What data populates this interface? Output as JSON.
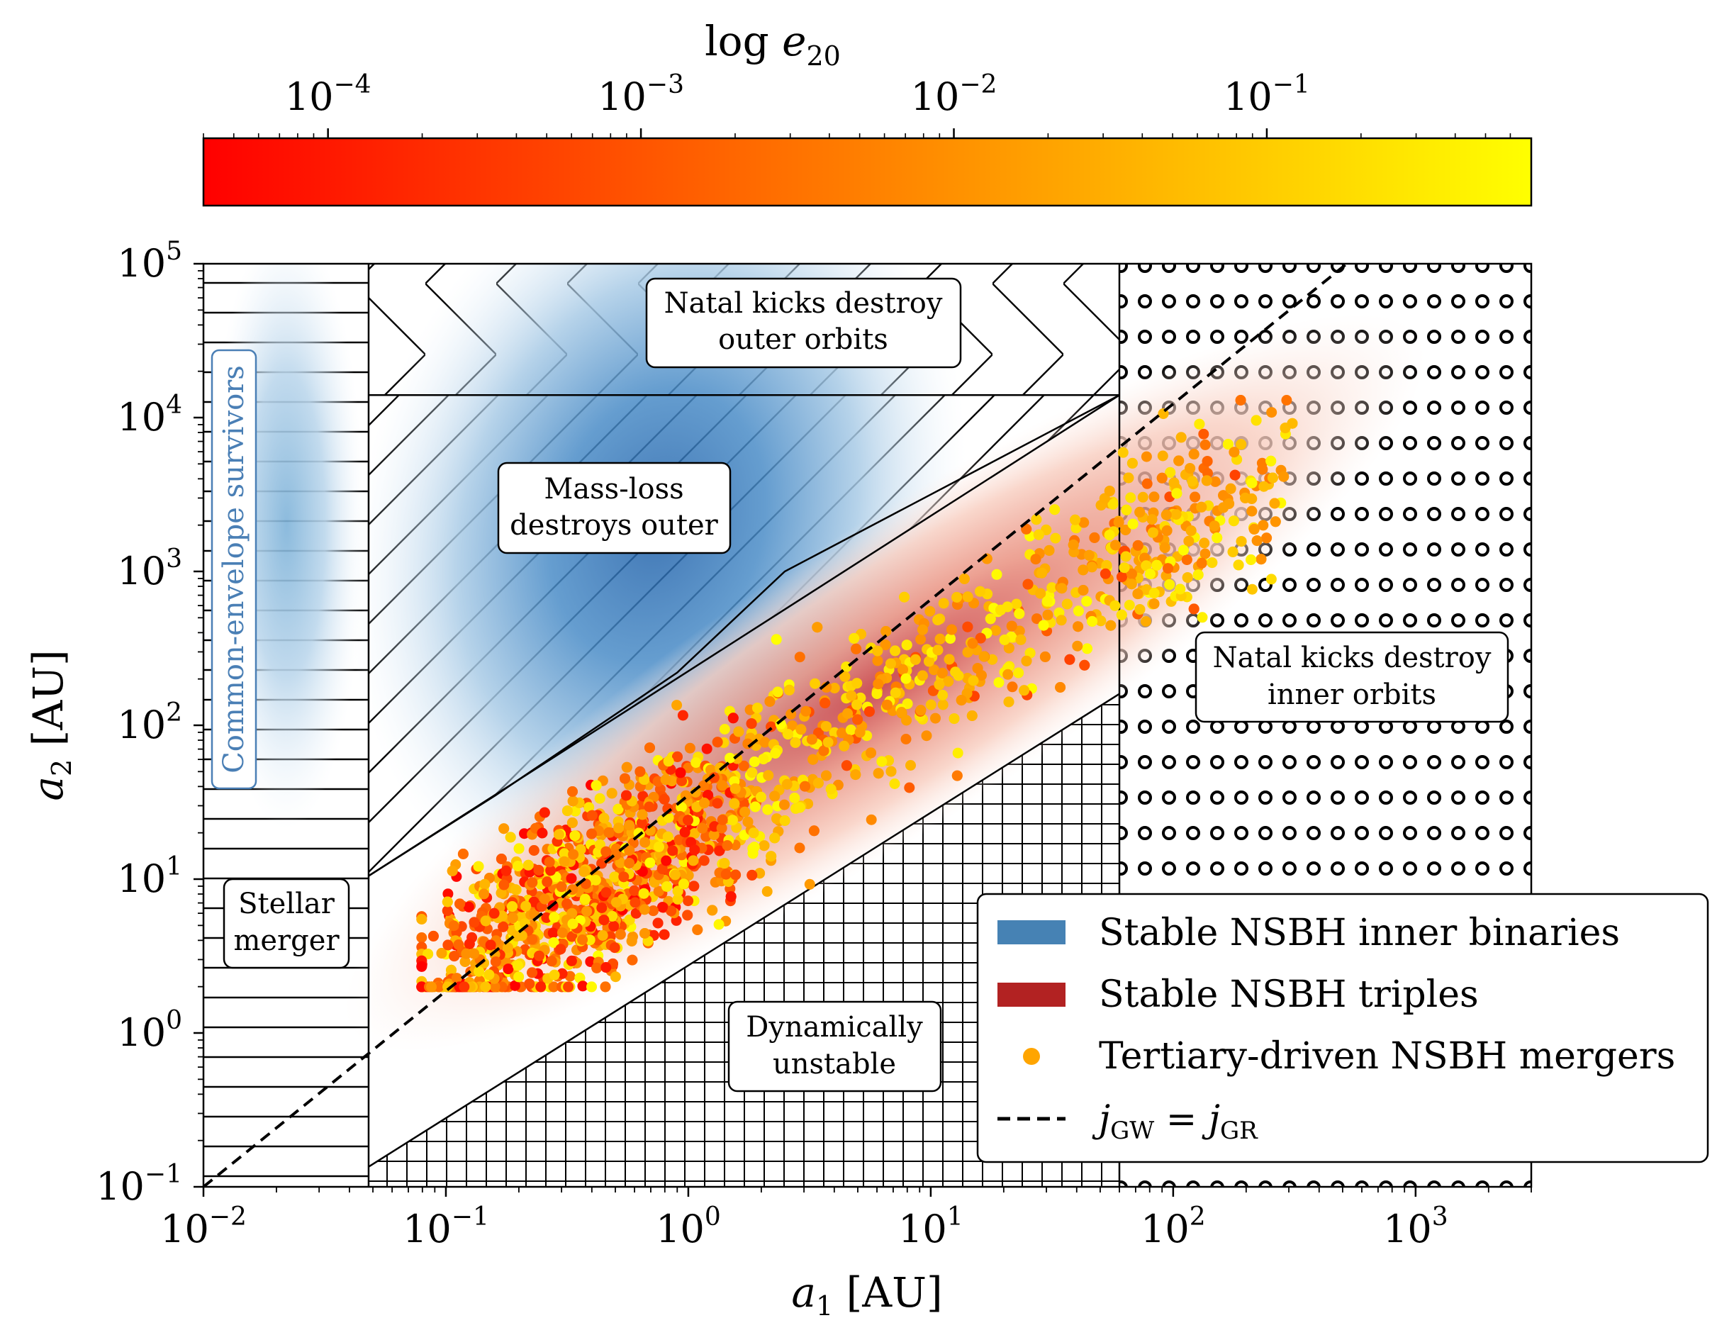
{
  "chart_data": {
    "type": "scatter",
    "title": "",
    "xlabel": "a_1 [AU]",
    "ylabel": "a_2 [AU]",
    "xscale": "log",
    "yscale": "log",
    "xlim": [
      0.01,
      3000
    ],
    "ylim": [
      0.1,
      100000
    ],
    "x_ticks": [
      {
        "value": 0.01,
        "base": "10",
        "exp": "−2"
      },
      {
        "value": 0.1,
        "base": "10",
        "exp": "−1"
      },
      {
        "value": 1,
        "base": "10",
        "exp": "0"
      },
      {
        "value": 10,
        "base": "10",
        "exp": "1"
      },
      {
        "value": 100,
        "base": "10",
        "exp": "2"
      },
      {
        "value": 1000,
        "base": "10",
        "exp": "3"
      }
    ],
    "y_ticks": [
      {
        "value": 0.1,
        "base": "10",
        "exp": "−1"
      },
      {
        "value": 1,
        "base": "10",
        "exp": "0"
      },
      {
        "value": 10,
        "base": "10",
        "exp": "1"
      },
      {
        "value": 100,
        "base": "10",
        "exp": "2"
      },
      {
        "value": 1000,
        "base": "10",
        "exp": "3"
      },
      {
        "value": 10000,
        "base": "10",
        "exp": "4"
      },
      {
        "value": 100000,
        "base": "10",
        "exp": "5"
      }
    ],
    "colorbar": {
      "title": "log e_20",
      "scale": "log",
      "range": [
        4e-05,
        0.7
      ],
      "cmap": [
        "#ff0000",
        "#ff8000",
        "#ffff00"
      ],
      "ticks": [
        {
          "value": 0.0001,
          "base": "10",
          "exp": "−4"
        },
        {
          "value": 0.001,
          "base": "10",
          "exp": "−3"
        },
        {
          "value": 0.01,
          "base": "10",
          "exp": "−2"
        },
        {
          "value": 0.1,
          "base": "10",
          "exp": "−1"
        }
      ]
    },
    "regions": [
      {
        "name": "Common-envelope survivors",
        "a1_range": [
          0.01,
          0.048
        ],
        "hatch": "horizontal"
      },
      {
        "name": "Stellar merger",
        "a1_range": [
          0.01,
          0.048
        ],
        "hatch": "horizontal"
      },
      {
        "name": "Natal kicks destroy outer orbits",
        "a2_min": 14000,
        "a1_range": [
          0.048,
          60
        ],
        "hatch": "chevron"
      },
      {
        "name": "Mass-loss destroys outer",
        "hatch": "diagonal"
      },
      {
        "name": "Natal kicks destroy inner orbits",
        "a1_min": 60,
        "hatch": "circles"
      },
      {
        "name": "Dynamically unstable",
        "hatch": "grid"
      }
    ],
    "boundaries": {
      "chevron_a2": 14000,
      "inner_kick_a1": 60,
      "stellar_merger_a1": 0.048,
      "stability_line": [
        [
          0.048,
          0.135
        ],
        [
          60,
          160
        ]
      ],
      "mass_loss_polyline": [
        [
          0.048,
          10.5
        ],
        [
          0.16,
          35
        ],
        [
          0.9,
          220
        ],
        [
          2.5,
          1000
        ],
        [
          60,
          14000
        ]
      ],
      "mass_loss_upper_line": [
        [
          0.048,
          10.5
        ],
        [
          60,
          14000
        ]
      ]
    },
    "jgw_line": [
      [
        0.01,
        0.1
      ],
      [
        600,
        120000
      ]
    ],
    "kde_inner_binaries": {
      "peak_a1": 0.5,
      "peak_a2": 500,
      "ce_peak_a1": 0.022,
      "ce_peak_a2": 2000
    },
    "kde_triples": {
      "peak_a1": 0.5,
      "peak_a2": 12
    },
    "legend": [
      {
        "label": "Stable NSBH inner binaries",
        "kind": "patch",
        "color": "#4682b4"
      },
      {
        "label": "Stable NSBH triples",
        "kind": "patch",
        "color": "#b22222"
      },
      {
        "label": "Tertiary-driven NSBH mergers",
        "kind": "dot",
        "color": "#ffa500"
      },
      {
        "label": "j_GW = j_GR",
        "kind": "dashed",
        "color": "#000000"
      }
    ],
    "scatter_sample": {
      "n_points": 2600,
      "x_log_range": [
        -1.1,
        2.6
      ],
      "relation": "log a2 ≈ log a1 + 1.3 ± 0.45 (spread)"
    }
  },
  "labels": {
    "x_axis_var": "a",
    "x_axis_sub": "1",
    "x_axis_unit": " [AU]",
    "y_axis_var": "a",
    "y_axis_sub": "2",
    "y_axis_unit": " [AU]",
    "cbar_log": "log ",
    "cbar_var": "e",
    "cbar_sub": "20",
    "region_ce": "Common-envelope survivors",
    "region_stellar_1": "Stellar",
    "region_stellar_2": "merger",
    "region_outer_1": "Natal kicks destroy",
    "region_outer_2": "outer orbits",
    "region_massloss_1": "Mass-loss",
    "region_massloss_2": "destroys outer",
    "region_inner_1": "Natal kicks destroy",
    "region_inner_2": "inner orbits",
    "region_dyn_1": "Dynamically",
    "region_dyn_2": "unstable",
    "legend_1": "Stable NSBH inner binaries",
    "legend_2": "Stable NSBH triples",
    "legend_3": "Tertiary-driven NSBH mergers",
    "legend_4_a": "j",
    "legend_4_sub_a": "GW",
    "legend_4_eq": " = ",
    "legend_4_b": "j",
    "legend_4_sub_b": "GR"
  }
}
